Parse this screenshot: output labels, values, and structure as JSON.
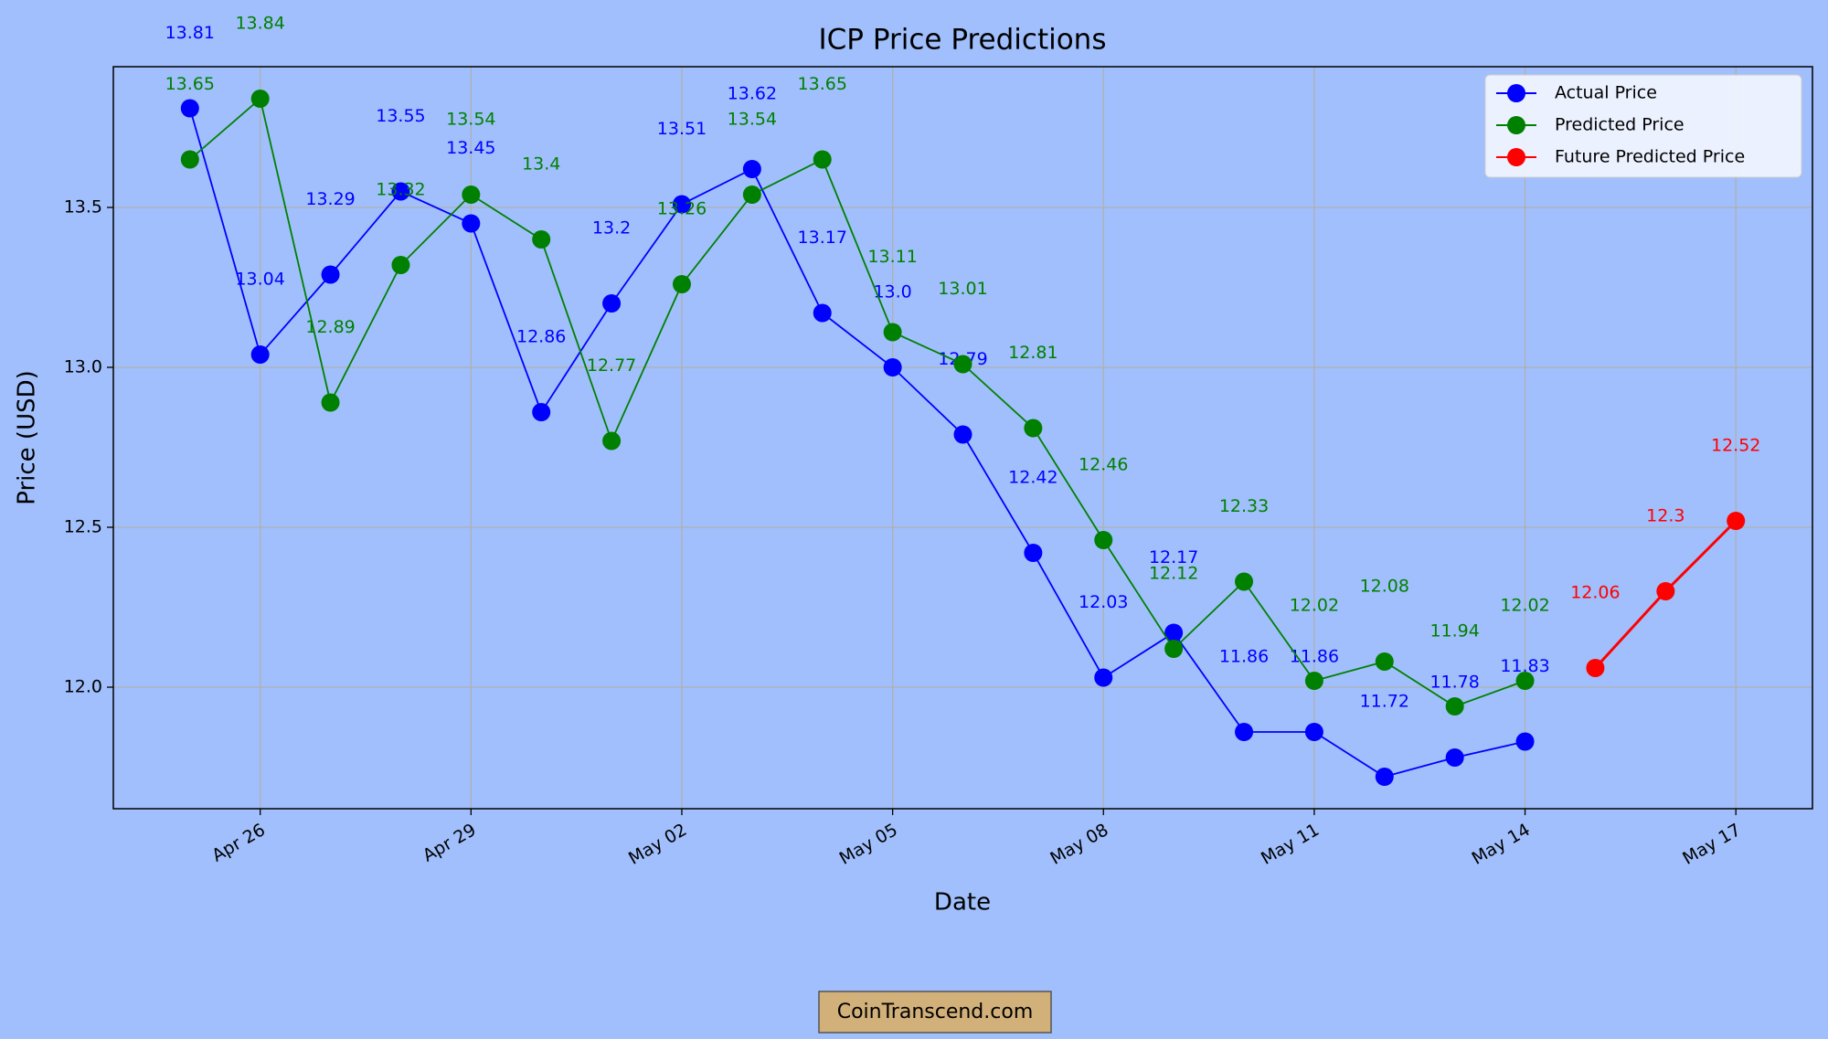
{
  "chart_data": {
    "type": "line",
    "title": "ICP Price Predictions",
    "x_label": "Date",
    "y_label": "Price (USD)",
    "x": [
      "Apr 25",
      "Apr 26",
      "Apr 27",
      "Apr 28",
      "Apr 29",
      "Apr 30",
      "May 01",
      "May 02",
      "May 03",
      "May 04",
      "May 05",
      "May 06",
      "May 07",
      "May 08",
      "May 09",
      "May 10",
      "May 11",
      "May 12",
      "May 13",
      "May 14",
      "May 15",
      "May 16",
      "May 17"
    ],
    "series": [
      {
        "name": "Actual Price",
        "color": "#0000ff",
        "values": [
          13.81,
          13.04,
          13.29,
          13.55,
          13.45,
          12.86,
          13.2,
          13.51,
          13.62,
          13.17,
          13.0,
          12.79,
          12.42,
          12.03,
          12.17,
          11.86,
          11.86,
          11.72,
          11.78,
          11.83,
          null,
          null,
          null
        ],
        "value_labels": [
          "13.81",
          "13.04",
          "13.29",
          "13.55",
          "13.45",
          "12.86",
          "13.2",
          "13.51",
          "13.62",
          "13.17",
          "13.0",
          "12.79",
          "12.42",
          "12.03",
          "12.17",
          "11.86",
          "11.86",
          "11.72",
          "11.78",
          "11.83",
          null,
          null,
          null
        ]
      },
      {
        "name": "Predicted Price",
        "color": "#008000",
        "values": [
          13.65,
          13.84,
          12.89,
          13.32,
          13.54,
          13.4,
          12.77,
          13.26,
          13.54,
          13.65,
          13.11,
          13.01,
          12.81,
          12.46,
          12.12,
          12.33,
          12.02,
          12.08,
          11.94,
          12.02,
          null,
          null,
          null
        ]
      },
      {
        "name": "Future Predicted Price",
        "color": "#ff0000",
        "values": [
          null,
          null,
          null,
          null,
          null,
          null,
          null,
          null,
          null,
          null,
          null,
          null,
          null,
          null,
          null,
          null,
          null,
          null,
          null,
          null,
          12.06,
          12.3,
          12.52
        ]
      }
    ],
    "ylim": [
      11.62,
      13.94
    ],
    "yticks": [
      {
        "value": 12.0,
        "label": "12.0"
      },
      {
        "value": 12.5,
        "label": "12.5"
      },
      {
        "value": 13.0,
        "label": "13.0"
      },
      {
        "value": 13.5,
        "label": "13.5"
      }
    ],
    "xticks": [
      "Apr 26",
      "Apr 29",
      "May 02",
      "May 05",
      "May 08",
      "May 11",
      "May 14",
      "May 17"
    ],
    "grid": true,
    "legend": "upper right",
    "watermark": "CoinTranscend.com"
  }
}
